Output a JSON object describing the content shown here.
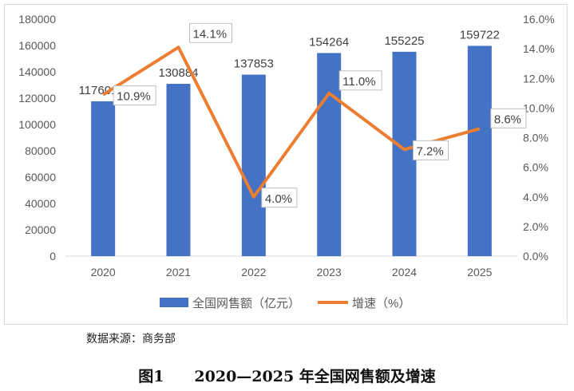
{
  "chart_data": {
    "type": "bar+line",
    "categories": [
      "2020",
      "2021",
      "2022",
      "2023",
      "2024",
      "2025"
    ],
    "series": [
      {
        "name": "全国网售额（亿元）",
        "type": "bar",
        "axis": "left",
        "color": "#4472C4",
        "values": [
          117601.3,
          130884,
          137853,
          154264,
          155225,
          159722
        ],
        "labels": [
          "117601.3",
          "130884",
          "137853",
          "154264",
          "155225",
          "159722"
        ]
      },
      {
        "name": "增速（%）",
        "type": "line",
        "axis": "right",
        "color": "#ED7D31",
        "values": [
          10.9,
          14.1,
          4.0,
          11.0,
          7.2,
          8.6
        ],
        "labels": [
          "10.9%",
          "14.1%",
          "4.0%",
          "11.0%",
          "7.2%",
          "8.6%"
        ]
      }
    ],
    "left_axis": {
      "ylim": [
        0,
        180000
      ],
      "ticks": [
        "0",
        "20000",
        "40000",
        "60000",
        "80000",
        "100000",
        "120000",
        "140000",
        "160000",
        "180000"
      ]
    },
    "right_axis": {
      "ylim": [
        0,
        16
      ],
      "ticks": [
        "0.0%",
        "2.0%",
        "4.0%",
        "6.0%",
        "8.0%",
        "10.0%",
        "12.0%",
        "14.0%",
        "16.0%"
      ]
    },
    "legend": "bottom",
    "grid": false
  },
  "source": "数据来源：商务部",
  "caption": "图1　　2020—2025 年全国网售额及增速"
}
